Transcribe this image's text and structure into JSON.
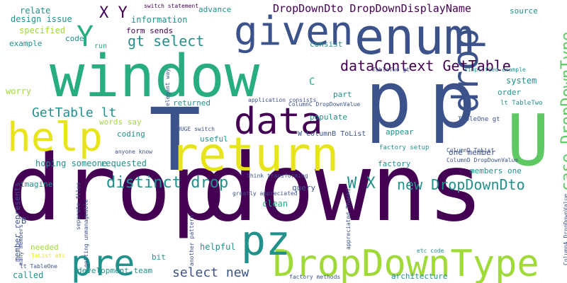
{
  "palette": {
    "dark_purple": "#440154",
    "indigo": "#3b528b",
    "teal": "#21918c",
    "green": "#27ad81",
    "lime": "#5ec962",
    "yellow_green": "#a0da39",
    "yellow": "#e7e419"
  },
  "words": [
    {
      "text": "drop",
      "color": "dark_purple",
      "rotated": false
    },
    {
      "text": "downs",
      "color": "dark_purple",
      "rotated": false
    },
    {
      "text": "window",
      "color": "green",
      "rotated": false
    },
    {
      "text": "enum",
      "color": "indigo",
      "rotated": false
    },
    {
      "text": "p",
      "color": "indigo",
      "rotated": false
    },
    {
      "text": "p",
      "color": "indigo",
      "rotated": false
    },
    {
      "text": "T",
      "color": "indigo",
      "rotated": false
    },
    {
      "text": "U",
      "color": "lime",
      "rotated": false
    },
    {
      "text": "return",
      "color": "yellow",
      "rotated": false
    },
    {
      "text": "given",
      "color": "indigo",
      "rotated": false
    },
    {
      "text": "drop",
      "color": "indigo",
      "rotated": true
    },
    {
      "text": "data",
      "color": "dark_purple",
      "rotated": false
    },
    {
      "text": "help",
      "color": "yellow",
      "rotated": false
    },
    {
      "text": "DropDownType",
      "color": "yellow_green",
      "rotated": false
    },
    {
      "text": "pre",
      "color": "teal",
      "rotated": false
    },
    {
      "text": "pz",
      "color": "teal",
      "rotated": false
    },
    {
      "text": "Y",
      "color": "green",
      "rotated": false
    },
    {
      "text": "case DropDownType",
      "color": "lime",
      "rotated": true
    },
    {
      "text": "dataContext GetTable",
      "color": "dark_purple",
      "rotated": false
    },
    {
      "text": "new DropDownDto",
      "color": "teal",
      "rotated": false
    },
    {
      "text": "distinct drop",
      "color": "teal",
      "rotated": false
    },
    {
      "text": "W X",
      "color": "teal",
      "rotated": false
    },
    {
      "text": "gt select",
      "color": "teal",
      "rotated": false
    },
    {
      "text": "GetTable lt",
      "color": "teal",
      "rotated": false
    },
    {
      "text": "select new",
      "color": "indigo",
      "rotated": false
    },
    {
      "text": "X Y",
      "color": "dark_purple",
      "rotated": false
    },
    {
      "text": "DropDownDto DropDownDisplayName",
      "color": "dark_purple",
      "rotated": false
    },
    {
      "text": "relate",
      "color": "teal",
      "rotated": false
    },
    {
      "text": "design issue",
      "color": "teal",
      "rotated": false
    },
    {
      "text": "specified",
      "color": "yellow_green",
      "rotated": false
    },
    {
      "text": "code",
      "color": "teal",
      "rotated": false
    },
    {
      "text": "example",
      "color": "teal",
      "rotated": false
    },
    {
      "text": "run",
      "color": "green",
      "rotated": false
    },
    {
      "text": "worry",
      "color": "yellow_green",
      "rotated": false
    },
    {
      "text": "switch statement",
      "color": "dark_purple",
      "rotated": false
    },
    {
      "text": "information",
      "color": "teal",
      "rotated": false
    },
    {
      "text": "form sends",
      "color": "dark_purple",
      "rotated": false
    },
    {
      "text": "advance",
      "color": "teal",
      "rotated": false
    },
    {
      "text": "source",
      "color": "teal",
      "rotated": false
    },
    {
      "text": "consist",
      "color": "teal",
      "rotated": false
    },
    {
      "text": "TableTwo gt",
      "color": "indigo",
      "rotated": false
    },
    {
      "text": "simplified example",
      "color": "teal",
      "rotated": false
    },
    {
      "text": "system",
      "color": "teal",
      "rotated": false
    },
    {
      "text": "order",
      "color": "teal",
      "rotated": false
    },
    {
      "text": "lt TableTwo",
      "color": "teal",
      "rotated": false
    },
    {
      "text": "part",
      "color": "teal",
      "rotated": false
    },
    {
      "text": "application consists",
      "color": "indigo",
      "rotated": false
    },
    {
      "text": "ColumnC DropDownValue",
      "color": "indigo",
      "rotated": false
    },
    {
      "text": "C",
      "color": "green",
      "rotated": false
    },
    {
      "text": "returned",
      "color": "teal",
      "rotated": false
    },
    {
      "text": "populate",
      "color": "teal",
      "rotated": false
    },
    {
      "text": "words say",
      "color": "yellow_green",
      "rotated": false
    },
    {
      "text": "coding",
      "color": "teal",
      "rotated": false
    },
    {
      "text": "HUGE switch",
      "color": "indigo",
      "rotated": false
    },
    {
      "text": "useful",
      "color": "teal",
      "rotated": false
    },
    {
      "text": "W ColumnB ToList",
      "color": "indigo",
      "rotated": false
    },
    {
      "text": "appear",
      "color": "teal",
      "rotated": false
    },
    {
      "text": "TableOne gt",
      "color": "indigo",
      "rotated": false
    },
    {
      "text": "factory setup",
      "color": "teal",
      "rotated": false
    },
    {
      "text": "one member",
      "color": "indigo",
      "rotated": false
    },
    {
      "text": "ColumnD ToList",
      "color": "indigo",
      "rotated": false
    },
    {
      "text": "ColumnD DropDownValue",
      "color": "indigo",
      "rotated": false
    },
    {
      "text": "anyone know",
      "color": "indigo",
      "rotated": false
    },
    {
      "text": "elegant way",
      "color": "indigo",
      "rotated": true
    },
    {
      "text": "hoping someone",
      "color": "teal",
      "rotated": false
    },
    {
      "text": "requested",
      "color": "teal",
      "rotated": false
    },
    {
      "text": "think transforming",
      "color": "indigo",
      "rotated": false
    },
    {
      "text": "factory",
      "color": "teal",
      "rotated": false
    },
    {
      "text": "members one",
      "color": "teal",
      "rotated": false
    },
    {
      "text": "imagine",
      "color": "teal",
      "rotated": false
    },
    {
      "text": "query",
      "color": "indigo",
      "rotated": false
    },
    {
      "text": "clean",
      "color": "green",
      "rotated": false
    },
    {
      "text": "greatly appreciated",
      "color": "indigo",
      "rotated": false
    },
    {
      "text": "member represents",
      "color": "indigo",
      "rotated": true
    },
    {
      "text": "many members",
      "color": "indigo",
      "rotated": true
    },
    {
      "text": "separate files",
      "color": "indigo",
      "rotated": true
    },
    {
      "text": "getting unmanageable",
      "color": "indigo",
      "rotated": true
    },
    {
      "text": "another pattern",
      "color": "indigo",
      "rotated": true
    },
    {
      "text": "appreciated Thanks",
      "color": "indigo",
      "rotated": true
    },
    {
      "text": "ColumnA DropDownValue",
      "color": "indigo",
      "rotated": true
    },
    {
      "text": "B",
      "color": "indigo",
      "rotated": false
    },
    {
      "text": "needed",
      "color": "yellow_green",
      "rotated": false
    },
    {
      "text": "ToList etc",
      "color": "yellow",
      "rotated": false
    },
    {
      "text": "lt TableOne",
      "color": "indigo",
      "rotated": false
    },
    {
      "text": "bit",
      "color": "teal",
      "rotated": false
    },
    {
      "text": "helpful",
      "color": "teal",
      "rotated": false
    },
    {
      "text": "development team",
      "color": "teal",
      "rotated": false
    },
    {
      "text": "called",
      "color": "teal",
      "rotated": false
    },
    {
      "text": "etc code",
      "color": "teal",
      "rotated": false
    },
    {
      "text": "architecture",
      "color": "teal",
      "rotated": false
    },
    {
      "text": "factory methods",
      "color": "indigo",
      "rotated": false
    }
  ]
}
